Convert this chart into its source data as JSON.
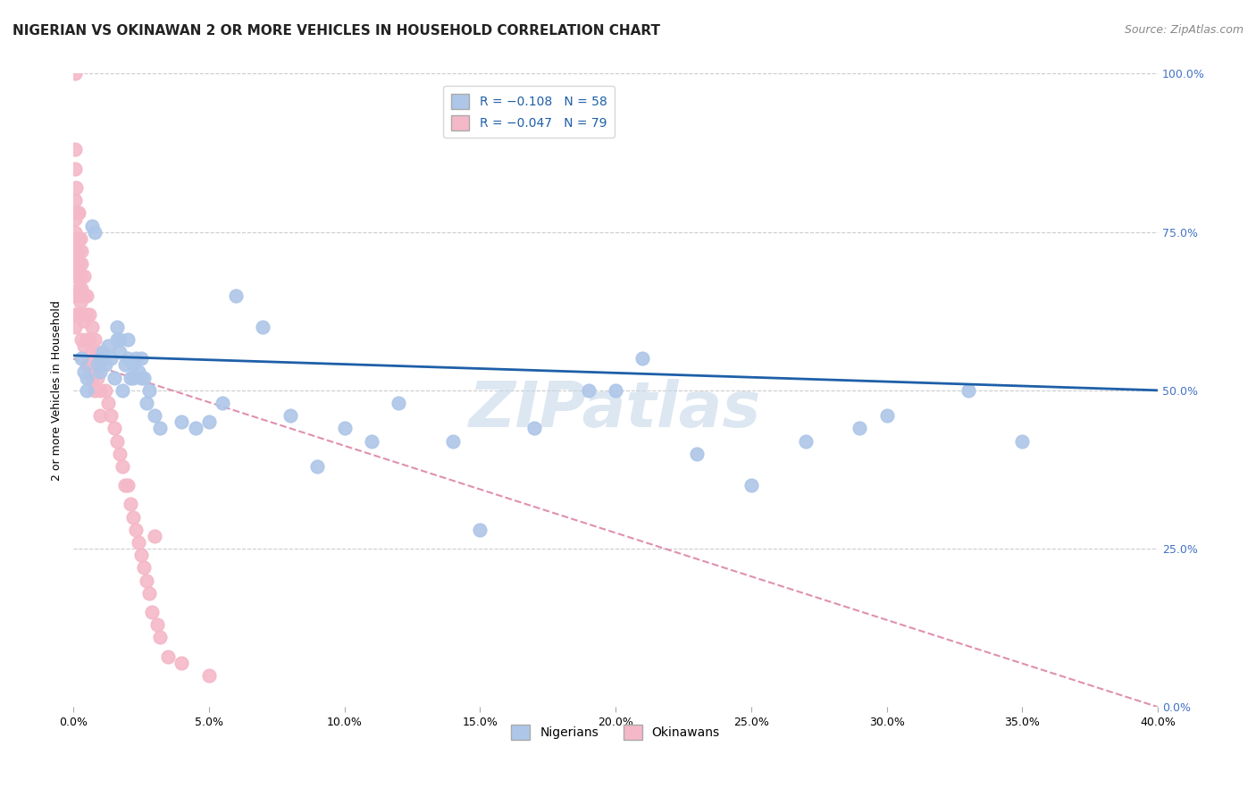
{
  "title": "NIGERIAN VS OKINAWAN 2 OR MORE VEHICLES IN HOUSEHOLD CORRELATION CHART",
  "source": "Source: ZipAtlas.com",
  "ylabel": "2 or more Vehicles in Household",
  "xmin": 0.0,
  "xmax": 40.0,
  "ymin": 0.0,
  "ymax": 100.0,
  "yticks": [
    0,
    25,
    50,
    75,
    100
  ],
  "ytick_labels": [
    "0.0%",
    "25.0%",
    "50.0%",
    "75.0%",
    "100.0%"
  ],
  "xticks": [
    0,
    5,
    10,
    15,
    20,
    25,
    30,
    35,
    40
  ],
  "watermark": "ZIPatlas",
  "legend_r_n_nig": "R = −0.108   N = 58",
  "legend_r_n_ok": "R = −0.047   N = 79",
  "nigerians": {
    "color": "#aec6e8",
    "line_color": "#1e5fa8",
    "x": [
      0.3,
      0.4,
      0.5,
      0.5,
      0.7,
      0.8,
      0.9,
      1.0,
      1.0,
      1.1,
      1.2,
      1.3,
      1.4,
      1.5,
      1.6,
      1.6,
      1.7,
      1.7,
      1.8,
      1.9,
      2.0,
      2.0,
      2.1,
      2.2,
      2.2,
      2.3,
      2.4,
      2.5,
      2.5,
      2.6,
      2.7,
      2.8,
      3.0,
      3.2,
      4.0,
      4.5,
      5.0,
      5.5,
      6.0,
      7.0,
      8.0,
      9.0,
      10.0,
      11.0,
      12.0,
      14.0,
      15.0,
      17.0,
      19.0,
      20.0,
      21.0,
      23.0,
      25.0,
      27.0,
      29.0,
      30.0,
      33.0,
      35.0
    ],
    "y": [
      55,
      53,
      52,
      50,
      76,
      75,
      54,
      53,
      55,
      56,
      54,
      57,
      55,
      52,
      60,
      58,
      58,
      56,
      50,
      54,
      58,
      55,
      52,
      54,
      52,
      55,
      53,
      55,
      52,
      52,
      48,
      50,
      46,
      44,
      45,
      44,
      45,
      48,
      65,
      60,
      46,
      38,
      44,
      42,
      48,
      42,
      28,
      44,
      50,
      50,
      55,
      40,
      35,
      42,
      44,
      46,
      50,
      42
    ],
    "line_x0": 0.0,
    "line_y0": 55.5,
    "line_x1": 40.0,
    "line_y1": 50.0
  },
  "okinawans": {
    "color": "#f4b8c8",
    "line_color": "#e090b0",
    "x": [
      0.05,
      0.05,
      0.05,
      0.05,
      0.05,
      0.05,
      0.05,
      0.05,
      0.05,
      0.05,
      0.05,
      0.05,
      0.1,
      0.1,
      0.1,
      0.1,
      0.1,
      0.15,
      0.15,
      0.15,
      0.2,
      0.2,
      0.2,
      0.2,
      0.2,
      0.25,
      0.25,
      0.25,
      0.3,
      0.3,
      0.3,
      0.3,
      0.3,
      0.4,
      0.4,
      0.4,
      0.4,
      0.5,
      0.5,
      0.5,
      0.5,
      0.6,
      0.6,
      0.6,
      0.7,
      0.7,
      0.7,
      0.8,
      0.8,
      0.8,
      0.9,
      0.9,
      1.0,
      1.0,
      1.0,
      1.2,
      1.3,
      1.4,
      1.5,
      1.6,
      1.7,
      1.8,
      1.9,
      2.0,
      2.1,
      2.2,
      2.3,
      2.4,
      2.5,
      2.6,
      2.7,
      2.8,
      2.9,
      3.0,
      3.1,
      3.2,
      3.5,
      4.0,
      5.0
    ],
    "y": [
      100,
      88,
      85,
      80,
      77,
      75,
      72,
      70,
      68,
      65,
      62,
      60,
      82,
      78,
      74,
      70,
      65,
      78,
      72,
      68,
      78,
      74,
      70,
      66,
      62,
      74,
      68,
      64,
      72,
      70,
      66,
      62,
      58,
      68,
      65,
      61,
      57,
      65,
      62,
      58,
      54,
      62,
      58,
      54,
      60,
      56,
      52,
      58,
      54,
      50,
      56,
      52,
      54,
      50,
      46,
      50,
      48,
      46,
      44,
      42,
      40,
      38,
      35,
      35,
      32,
      30,
      28,
      26,
      24,
      22,
      20,
      18,
      15,
      27,
      13,
      11,
      8,
      7,
      5
    ],
    "line_x0": 0.0,
    "line_y0": 55.0,
    "line_x1": 40.0,
    "line_y1": 0.0
  },
  "background_color": "#ffffff",
  "grid_color": "#cccccc",
  "title_fontsize": 11,
  "axis_label_fontsize": 9,
  "tick_fontsize": 9,
  "legend_fontsize": 10,
  "watermark_color": "#c5d8ea",
  "watermark_fontsize": 52,
  "right_ytick_color": "#4472c4",
  "source_fontsize": 9
}
